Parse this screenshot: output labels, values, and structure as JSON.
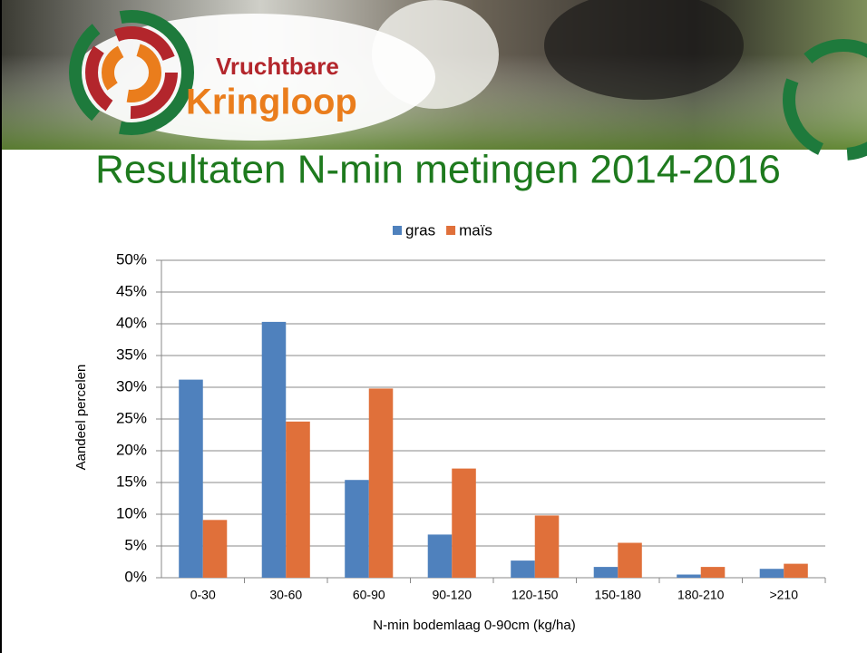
{
  "header": {
    "logo_top": "Vruchtbare",
    "logo_bottom": "Kringloop"
  },
  "chart_data": {
    "type": "bar",
    "title": "Resultaten N-min metingen 2014-2016",
    "x_label": "N-min bodemlaag 0-90cm (kg/ha)",
    "y_label": "Aandeel percelen",
    "categories": [
      "0-30",
      "30-60",
      "60-90",
      "90-120",
      "120-150",
      "150-180",
      "180-210",
      ">210"
    ],
    "series": [
      {
        "name": "gras",
        "color": "#4f81bd",
        "values": [
          31.2,
          40.3,
          15.4,
          6.8,
          2.7,
          1.7,
          0.5,
          1.4
        ]
      },
      {
        "name": "maïs",
        "color": "#e0703a",
        "values": [
          9.1,
          24.6,
          29.8,
          17.2,
          9.8,
          5.5,
          1.7,
          2.2
        ]
      }
    ],
    "ylim": [
      0,
      50
    ],
    "yticks": [
      {
        "value": 0,
        "label": "0%"
      },
      {
        "value": 5,
        "label": "5%"
      },
      {
        "value": 10,
        "label": "10%"
      },
      {
        "value": 15,
        "label": "15%"
      },
      {
        "value": 20,
        "label": "20%"
      },
      {
        "value": 25,
        "label": "25%"
      },
      {
        "value": 30,
        "label": "30%"
      },
      {
        "value": 35,
        "label": "35%"
      },
      {
        "value": 40,
        "label": "40%"
      },
      {
        "value": 45,
        "label": "45%"
      },
      {
        "value": 50,
        "label": "50%"
      }
    ],
    "grid": true,
    "legend": "top"
  }
}
